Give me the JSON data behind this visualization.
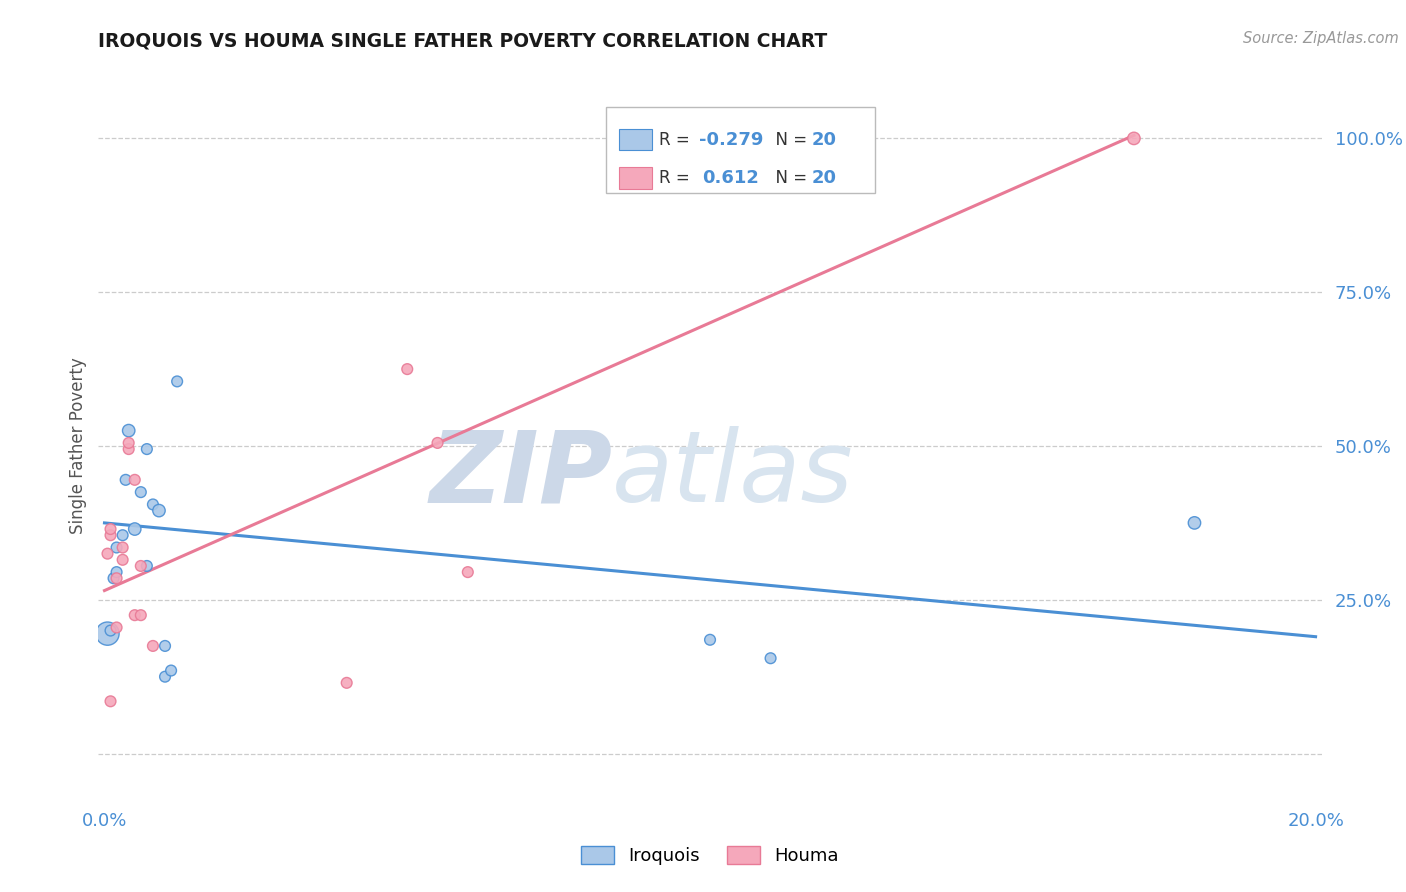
{
  "title": "IROQUOIS VS HOUMA SINGLE FATHER POVERTY CORRELATION CHART",
  "source": "Source: ZipAtlas.com",
  "ylabel": "Single Father Poverty",
  "y_ticks": [
    0.0,
    0.25,
    0.5,
    0.75,
    1.0
  ],
  "y_tick_labels": [
    "",
    "25.0%",
    "50.0%",
    "75.0%",
    "100.0%"
  ],
  "xlim": [
    -0.001,
    0.201
  ],
  "ylim": [
    -0.08,
    1.08
  ],
  "legend_r_blue": "-0.279",
  "legend_r_pink": "0.612",
  "legend_n": "20",
  "iroquois_x": [
    0.0005,
    0.001,
    0.0015,
    0.002,
    0.002,
    0.003,
    0.0035,
    0.004,
    0.005,
    0.006,
    0.007,
    0.007,
    0.008,
    0.009,
    0.01,
    0.01,
    0.011,
    0.012,
    0.1,
    0.11,
    0.18
  ],
  "iroquois_y": [
    0.195,
    0.2,
    0.285,
    0.295,
    0.335,
    0.355,
    0.445,
    0.525,
    0.365,
    0.425,
    0.305,
    0.495,
    0.405,
    0.395,
    0.175,
    0.125,
    0.135,
    0.605,
    0.185,
    0.155,
    0.375
  ],
  "iroquois_s": [
    280,
    60,
    60,
    60,
    60,
    60,
    60,
    80,
    80,
    60,
    60,
    60,
    60,
    80,
    60,
    60,
    60,
    60,
    60,
    60,
    80
  ],
  "houma_x": [
    0.0005,
    0.001,
    0.001,
    0.001,
    0.002,
    0.002,
    0.003,
    0.003,
    0.004,
    0.004,
    0.005,
    0.005,
    0.006,
    0.006,
    0.008,
    0.04,
    0.05,
    0.055,
    0.06,
    0.17
  ],
  "houma_y": [
    0.325,
    0.355,
    0.365,
    0.085,
    0.205,
    0.285,
    0.335,
    0.315,
    0.495,
    0.505,
    0.445,
    0.225,
    0.225,
    0.305,
    0.175,
    0.115,
    0.625,
    0.505,
    0.295,
    1.0
  ],
  "houma_s": [
    60,
    60,
    60,
    60,
    60,
    60,
    60,
    60,
    60,
    60,
    60,
    60,
    60,
    60,
    60,
    60,
    60,
    60,
    60,
    80
  ],
  "blue_line_x": [
    0.0,
    0.2
  ],
  "blue_line_y": [
    0.375,
    0.19
  ],
  "pink_line_x": [
    0.0,
    0.17
  ],
  "pink_line_y": [
    0.265,
    1.005
  ],
  "color_blue": "#aac8e8",
  "color_pink": "#f5a8bb",
  "line_color_blue": "#4a8fd4",
  "line_color_pink": "#e87a96",
  "background_color": "#ffffff",
  "watermark_zip": "ZIP",
  "watermark_atlas": "atlas",
  "watermark_color": "#ccd8e8"
}
